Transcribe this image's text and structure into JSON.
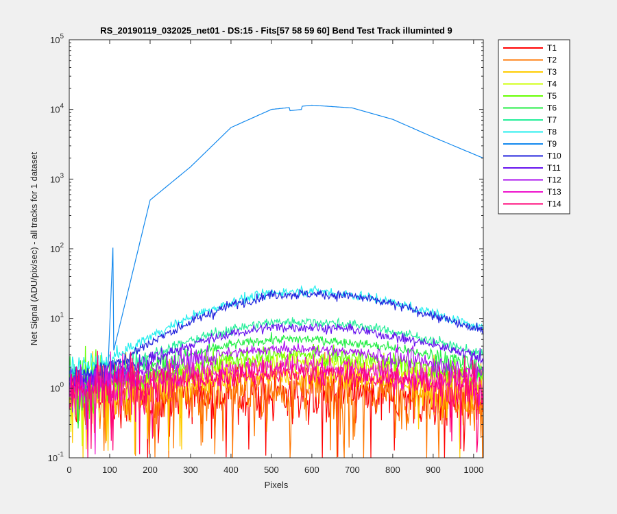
{
  "chart_data": {
    "type": "line",
    "title": "RS_20190119_032025_net01 - DS:15 - Fits[57  58  59  60]   Bend Test       Track illuminted 9",
    "xlabel": "Pixels",
    "ylabel": "Net Signal (ADU/pix/sec) - all tracks for 1 dataset",
    "xlim": [
      0,
      1024
    ],
    "ylim": [
      0.1,
      100000
    ],
    "yscale": "log",
    "grid": false,
    "legend_position": "outside-right",
    "x_ticks": [
      "0",
      "100",
      "200",
      "300",
      "400",
      "500",
      "600",
      "700",
      "800",
      "900",
      "1000"
    ],
    "y_ticks": [
      {
        "base": "10",
        "exp": "-1"
      },
      {
        "base": "10",
        "exp": "0"
      },
      {
        "base": "10",
        "exp": "1"
      },
      {
        "base": "10",
        "exp": "2"
      },
      {
        "base": "10",
        "exp": "3"
      },
      {
        "base": "10",
        "exp": "4"
      },
      {
        "base": "10",
        "exp": "5"
      }
    ],
    "x_profile": [
      0,
      100,
      200,
      300,
      400,
      500,
      600,
      700,
      800,
      900,
      1024
    ],
    "series": [
      {
        "name": "T1",
        "color": "#ff0000",
        "profile": [
          0.6,
          0.7,
          0.7,
          0.75,
          0.8,
          0.8,
          0.8,
          0.8,
          0.75,
          0.7,
          0.6
        ]
      },
      {
        "name": "T2",
        "color": "#ff7700",
        "profile": [
          0.7,
          0.75,
          0.8,
          0.85,
          0.9,
          0.95,
          0.95,
          0.9,
          0.85,
          0.8,
          0.7
        ]
      },
      {
        "name": "T3",
        "color": "#ffcc00",
        "profile": [
          0.9,
          1.0,
          1.1,
          1.2,
          1.4,
          1.5,
          1.5,
          1.4,
          1.3,
          1.1,
          0.9
        ]
      },
      {
        "name": "T4",
        "color": "#ccff00",
        "profile": [
          1.0,
          1.1,
          1.3,
          1.6,
          2.0,
          2.3,
          2.3,
          2.1,
          1.8,
          1.5,
          1.2
        ]
      },
      {
        "name": "T5",
        "color": "#66ff00",
        "profile": [
          1.0,
          1.2,
          1.5,
          2.0,
          2.6,
          3.0,
          3.0,
          2.8,
          2.4,
          1.9,
          1.4
        ]
      },
      {
        "name": "T6",
        "color": "#22ee44",
        "profile": [
          1.1,
          1.4,
          2.0,
          3.0,
          4.2,
          5.0,
          5.0,
          4.5,
          3.8,
          2.9,
          1.9
        ]
      },
      {
        "name": "T7",
        "color": "#22ee99",
        "profile": [
          1.3,
          1.8,
          3.0,
          4.8,
          7.0,
          8.8,
          9.0,
          8.2,
          6.5,
          4.8,
          3.0
        ]
      },
      {
        "name": "T8",
        "color": "#22eeee",
        "profile": [
          1.8,
          2.5,
          5.5,
          10.5,
          17.0,
          23.5,
          25.0,
          22.0,
          17.0,
          12.0,
          7.0
        ]
      },
      {
        "name": "T9",
        "color": "#1188ee",
        "profile": [
          1.5,
          2.0,
          500,
          1500,
          5500,
          10000,
          11500,
          10500,
          7200,
          4000,
          2000
        ]
      },
      {
        "name": "T10",
        "color": "#2222dd",
        "profile": [
          1.3,
          2.0,
          4.5,
          9.0,
          15.5,
          22.0,
          22.5,
          21.0,
          16.0,
          11.0,
          6.5
        ]
      },
      {
        "name": "T11",
        "color": "#6611ee",
        "profile": [
          1.2,
          1.5,
          2.5,
          4.2,
          6.0,
          7.5,
          7.5,
          7.0,
          5.5,
          4.2,
          2.8
        ]
      },
      {
        "name": "T12",
        "color": "#aa11ee",
        "profile": [
          1.1,
          1.3,
          1.8,
          2.5,
          3.2,
          3.6,
          3.6,
          3.3,
          2.8,
          2.2,
          1.7
        ]
      },
      {
        "name": "T13",
        "color": "#ee11cc",
        "profile": [
          1.0,
          1.1,
          1.3,
          1.6,
          1.9,
          2.1,
          2.1,
          1.9,
          1.6,
          1.4,
          1.1
        ]
      },
      {
        "name": "T14",
        "color": "#ff0077",
        "profile": [
          0.9,
          1.0,
          1.1,
          1.3,
          1.5,
          1.6,
          1.6,
          1.5,
          1.3,
          1.2,
          1.0
        ]
      }
    ]
  }
}
